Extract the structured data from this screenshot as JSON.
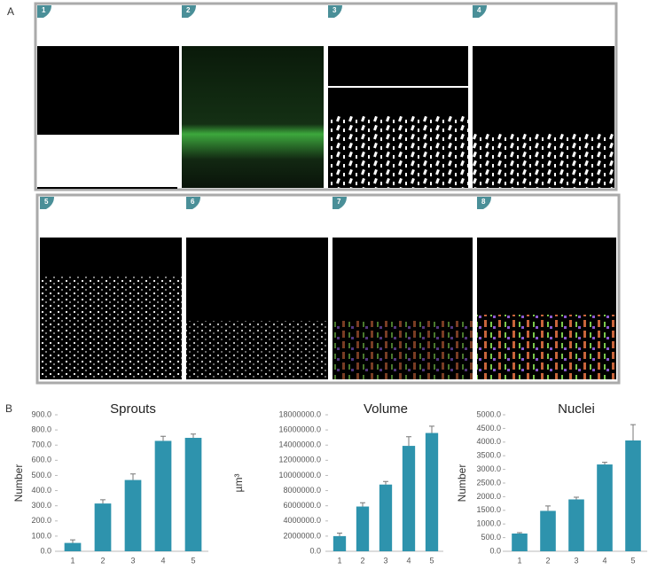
{
  "panel_labels": [
    "A",
    "B"
  ],
  "image_labels": [
    "1",
    "2",
    "3",
    "4",
    "5",
    "6",
    "7",
    "8"
  ],
  "chart_data": [
    {
      "type": "bar",
      "title": "Sprouts",
      "y_label": "Number",
      "categories": [
        "1",
        "2",
        "3",
        "4",
        "5"
      ],
      "series": [
        {
          "color": "#2e93ad",
          "values": [
            55,
            315,
            470,
            728,
            748
          ],
          "errors": [
            20,
            25,
            40,
            30,
            25
          ]
        }
      ],
      "ylim": [
        0,
        900
      ],
      "yticks": [
        {
          "value": 0,
          "label": "0.0"
        },
        {
          "value": 100,
          "label": "100.0"
        },
        {
          "value": 200,
          "label": "200.0"
        },
        {
          "value": 300,
          "label": "300.0"
        },
        {
          "value": 400,
          "label": "400.0"
        },
        {
          "value": 500,
          "label": "500.0"
        },
        {
          "value": 600,
          "label": "600.0"
        },
        {
          "value": 700,
          "label": "700.0"
        },
        {
          "value": 800,
          "label": "800.0"
        },
        {
          "value": 900,
          "label": "900.0"
        }
      ]
    },
    {
      "type": "bar",
      "title": "Volume",
      "y_label": "µm³",
      "categories": [
        "1",
        "2",
        "3",
        "4",
        "5"
      ],
      "series": [
        {
          "color": "#2e93ad",
          "values": [
            2000000,
            5900000,
            8800000,
            13900000,
            15600000
          ],
          "errors": [
            400000,
            500000,
            400000,
            1200000,
            900000
          ]
        }
      ],
      "ylim": [
        0,
        18000000
      ],
      "yticks": [
        {
          "value": 0,
          "label": "0.0"
        },
        {
          "value": 2000000,
          "label": "2000000.0"
        },
        {
          "value": 4000000,
          "label": "4000000.0"
        },
        {
          "value": 6000000,
          "label": "6000000.0"
        },
        {
          "value": 8000000,
          "label": "8000000.0"
        },
        {
          "value": 10000000,
          "label": "10000000.0"
        },
        {
          "value": 12000000,
          "label": "12000000.0"
        },
        {
          "value": 14000000,
          "label": "14000000.0"
        },
        {
          "value": 16000000,
          "label": "16000000.0"
        },
        {
          "value": 18000000,
          "label": "18000000.0"
        }
      ]
    },
    {
      "type": "bar",
      "title": "Nuclei",
      "y_label": "Number",
      "categories": [
        "1",
        "2",
        "3",
        "4",
        "5"
      ],
      "series": [
        {
          "color": "#2e93ad",
          "values": [
            650,
            1480,
            1900,
            3180,
            4060
          ],
          "errors": [
            30,
            180,
            80,
            80,
            580
          ]
        }
      ],
      "ylim": [
        0,
        5000
      ],
      "yticks": [
        {
          "value": 0,
          "label": "0.0"
        },
        {
          "value": 500,
          "label": "500.0"
        },
        {
          "value": 1000,
          "label": "1000.0"
        },
        {
          "value": 1500,
          "label": "1500.0"
        },
        {
          "value": 2000,
          "label": "2000.0"
        },
        {
          "value": 2500,
          "label": "2500.0"
        },
        {
          "value": 3000,
          "label": "3000.0"
        },
        {
          "value": 3500,
          "label": "3500.0"
        },
        {
          "value": 4000,
          "label": "4000.0"
        },
        {
          "value": 4500,
          "label": "4500.0"
        },
        {
          "value": 5000,
          "label": "5000.0"
        }
      ]
    }
  ]
}
